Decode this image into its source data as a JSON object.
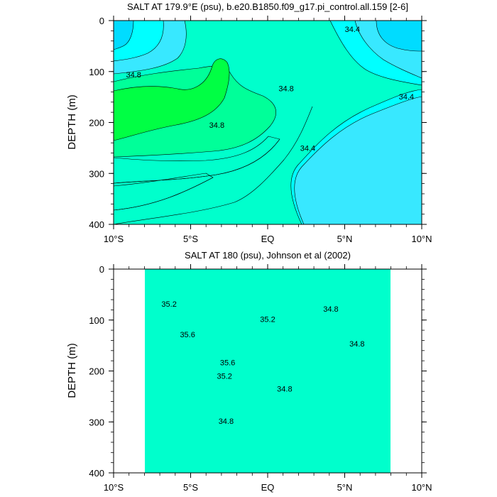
{
  "chart_data": [
    {
      "type": "contour",
      "title": "SALT AT 179.9°E (psu), b.e20.B1850.f09_g17.pi_control.all.159 [2-6]",
      "xlabel": "",
      "ylabel": "DEPTH (m)",
      "xlim": [
        -10,
        10
      ],
      "ylim": [
        400,
        0
      ],
      "x_ticks": [
        {
          "value": -10,
          "label": "10°S"
        },
        {
          "value": -5,
          "label": "5°S"
        },
        {
          "value": 0,
          "label": "EQ"
        },
        {
          "value": 5,
          "label": "5°N"
        },
        {
          "value": 10,
          "label": "10°N"
        }
      ],
      "y_ticks": [
        0,
        100,
        200,
        300,
        400
      ],
      "contour_interval": 0.2,
      "contour_labels": [
        {
          "value": 34.8,
          "x": -8.7,
          "y": 106
        },
        {
          "value": 34.8,
          "x": 1.2,
          "y": 133
        },
        {
          "value": 34.8,
          "x": -3.3,
          "y": 205
        },
        {
          "value": 34.4,
          "x": 5.5,
          "y": 17
        },
        {
          "value": 34.4,
          "x": 9.0,
          "y": 149
        },
        {
          "value": 34.4,
          "x": 2.6,
          "y": 250
        }
      ],
      "fill_colors": {
        "34.0": "#00dcff",
        "34.2": "#38e8ff",
        "34.4": "#00ffff",
        "34.6": "#00ffcc",
        "34.8": "#00ff99",
        "35.0": "#00ff44"
      }
    },
    {
      "type": "contour",
      "title": "SALT AT 180 (psu), Johnson et al (2002)",
      "xlabel": "",
      "ylabel": "DEPTH (m)",
      "xlim": [
        -10,
        10
      ],
      "ylim": [
        400,
        0
      ],
      "data_xrange": [
        -8,
        8
      ],
      "x_ticks": [
        {
          "value": -10,
          "label": "10°S"
        },
        {
          "value": -5,
          "label": "5°S"
        },
        {
          "value": 0,
          "label": "EQ"
        },
        {
          "value": 5,
          "label": "5°N"
        },
        {
          "value": 10,
          "label": "10°N"
        }
      ],
      "y_ticks": [
        0,
        100,
        200,
        300,
        400
      ],
      "contour_interval": 0.2,
      "contour_labels": [
        {
          "value": 35.2,
          "x": -6.4,
          "y": 68
        },
        {
          "value": 35.6,
          "x": -5.2,
          "y": 128
        },
        {
          "value": 35.6,
          "x": -2.6,
          "y": 183
        },
        {
          "value": 35.2,
          "x": -2.8,
          "y": 210
        },
        {
          "value": 35.2,
          "x": 0.0,
          "y": 98
        },
        {
          "value": 34.8,
          "x": 4.1,
          "y": 78
        },
        {
          "value": 34.8,
          "x": 5.8,
          "y": 146
        },
        {
          "value": 34.8,
          "x": 1.1,
          "y": 235
        },
        {
          "value": 34.8,
          "x": -2.7,
          "y": 298
        }
      ],
      "fill_colors": {
        "34.2": "#38e8ff",
        "34.4": "#00ffff",
        "34.6": "#00ffcc",
        "34.8": "#00ff99",
        "35.0": "#00ff44",
        "35.2": "#00dd00",
        "35.4": "#99ff33",
        "35.6": "#ffff00",
        "35.8": "#ffff88",
        "36.0": "#ffcc44"
      }
    }
  ]
}
